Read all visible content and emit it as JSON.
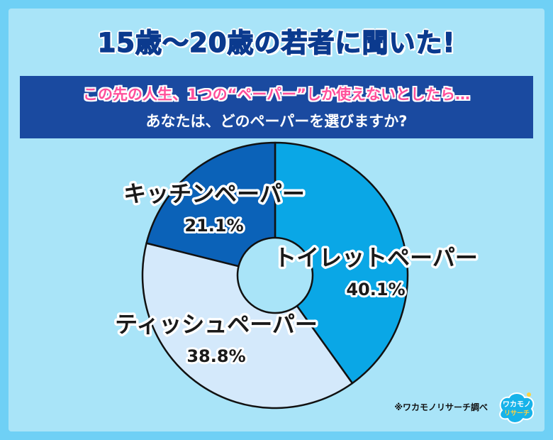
{
  "header": {
    "title": "15歳〜20歳の若者に聞いた!",
    "question_line1": "この先の人生、1つの“ペーパー”しか使えないとしたら…",
    "question_line2": "あなたは、どのペーパーを選びますか?"
  },
  "chart_data": {
    "type": "pie",
    "donut": true,
    "categories": [
      "トイレットペーパー",
      "ティッシュペーパー",
      "キッチンペーパー"
    ],
    "values": [
      40.1,
      38.8,
      21.1
    ],
    "value_labels": [
      "40.1%",
      "38.8%",
      "21.1%"
    ],
    "colors": [
      "#0aa7e6",
      "#d4e9fb",
      "#0b62b8"
    ],
    "start": "12 o'clock, clockwise"
  },
  "footer": {
    "credit": "※ワカモノリサーチ調べ",
    "logo_text": "ワカモノリサーチ"
  }
}
